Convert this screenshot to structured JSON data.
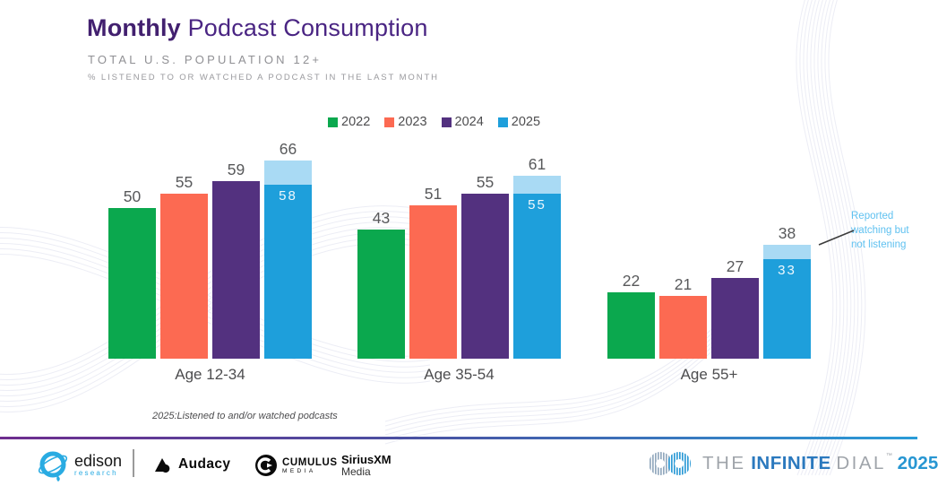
{
  "header": {
    "title_bold": "Monthly",
    "title_rest": " Podcast Consumption",
    "subtitle": "TOTAL U.S. POPULATION 12+",
    "kicker": "% LISTENED TO OR WATCHED A PODCAST IN THE LAST MONTH"
  },
  "chart_data": {
    "type": "bar",
    "title": "Monthly Podcast Consumption",
    "subtitle": "Total U.S. Population 12+",
    "unit": "% listened to or watched a podcast in the last month",
    "categories": [
      "Age 12-34",
      "Age 35-54",
      "Age 55+"
    ],
    "series": [
      {
        "name": "2022",
        "color": "#0BA84E",
        "values": [
          50,
          43,
          22
        ]
      },
      {
        "name": "2023",
        "color": "#FC6A52",
        "values": [
          55,
          51,
          21
        ]
      },
      {
        "name": "2024",
        "color": "#53317F",
        "values": [
          59,
          55,
          27
        ]
      },
      {
        "name": "2025",
        "color": "#1E9FDB",
        "values": [
          66,
          61,
          38
        ],
        "stack": {
          "listened": [
            58,
            55,
            33
          ],
          "watched_only": [
            8,
            6,
            5
          ],
          "watched_color": "#A9DAF4",
          "watched_note": "Reported watching but not listening"
        }
      }
    ],
    "ylim": [
      0,
      70
    ],
    "grid": false,
    "legend_position": "top",
    "value_labels": true,
    "footnote": "2025:Listened to and/or watched podcasts"
  },
  "annotation": {
    "lines": [
      "Reported",
      "watching but",
      "not listening"
    ]
  },
  "footnote": "2025:Listened to and/or watched podcasts",
  "footer": {
    "edison": {
      "name": "edison",
      "sub": "research"
    },
    "audacy": {
      "name": "Audacy"
    },
    "cumulus": {
      "name": "CUMULUS",
      "sub": "MEDIA"
    },
    "siriusxm": {
      "name": "SiriusXM",
      "sub": "Media"
    },
    "infinite_dial": {
      "the": "THE",
      "infinite": "INFINITE",
      "dial": "DIAL",
      "tm": "™",
      "year": "2025"
    }
  },
  "colors": {
    "title_purple": "#4A2583",
    "green_2022": "#0BA84E",
    "coral_2023": "#FC6A52",
    "purple_2024": "#53317F",
    "blue_2025": "#1E9FDB",
    "light_blue_watch": "#A9DAF4",
    "annotation_text": "#5FC1F0",
    "value_label": "#58595B"
  }
}
